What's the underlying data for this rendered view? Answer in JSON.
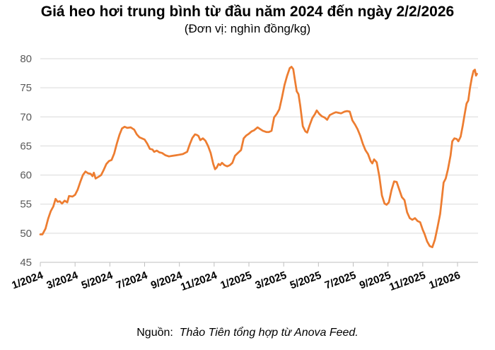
{
  "header": {
    "title": "Giá heo hơi trung bình từ đầu năm 2024 đến ngày 2/2/2026",
    "subtitle": "(Đơn vị: nghìn đồng/kg)"
  },
  "footer": {
    "source_label": "Nguồn:",
    "source_text": "Thảo Tiên tổng hợp từ Anova Feed."
  },
  "chart_data": {
    "type": "line",
    "title": "Giá heo hơi trung bình từ đầu năm 2024 đến ngày 2/2/2026",
    "unit": "nghìn đồng/kg",
    "xlabel": "",
    "ylabel": "",
    "ylim": [
      45,
      80
    ],
    "y_ticks": [
      80,
      75,
      70,
      65,
      60,
      55,
      50,
      45
    ],
    "x_ticks": [
      {
        "m": 0,
        "label": "1/2024"
      },
      {
        "m": 2,
        "label": "3/2024"
      },
      {
        "m": 4,
        "label": "5/2024"
      },
      {
        "m": 6,
        "label": "7/2024"
      },
      {
        "m": 8,
        "label": "9/2024"
      },
      {
        "m": 10,
        "label": "11/2024"
      },
      {
        "m": 12,
        "label": "1/2025"
      },
      {
        "m": 14,
        "label": "3/2025"
      },
      {
        "m": 16,
        "label": "5/2025"
      },
      {
        "m": 18,
        "label": "7/2025"
      },
      {
        "m": 20,
        "label": "9/2025"
      },
      {
        "m": 22,
        "label": "11/2025"
      },
      {
        "m": 24,
        "label": "1/2026"
      }
    ],
    "x_unit": "months since 1/2024",
    "grid": true,
    "legend_position": "none",
    "colors": {
      "line": "#ED7D31",
      "grid": "#D9D9D9",
      "axis": "#BFBFBF",
      "y_label": "#595959",
      "x_label": "#000000"
    },
    "series": [
      {
        "name": "Giá heo hơi trung bình (nghìn đồng/kg)",
        "points": [
          [
            0,
            49.8
          ],
          [
            0.12,
            49.8
          ],
          [
            0.3,
            50.8
          ],
          [
            0.45,
            52.5
          ],
          [
            0.6,
            53.8
          ],
          [
            0.75,
            54.6
          ],
          [
            0.88,
            55.9
          ],
          [
            1.0,
            55.4
          ],
          [
            1.12,
            55.5
          ],
          [
            1.25,
            55.1
          ],
          [
            1.4,
            55.6
          ],
          [
            1.55,
            55.3
          ],
          [
            1.65,
            56.4
          ],
          [
            1.85,
            56.3
          ],
          [
            2.0,
            56.6
          ],
          [
            2.15,
            57.5
          ],
          [
            2.3,
            58.8
          ],
          [
            2.45,
            60.0
          ],
          [
            2.6,
            60.6
          ],
          [
            2.75,
            60.3
          ],
          [
            2.9,
            60.2
          ],
          [
            3.0,
            59.8
          ],
          [
            3.08,
            60.4
          ],
          [
            3.18,
            59.4
          ],
          [
            3.35,
            59.7
          ],
          [
            3.5,
            60.0
          ],
          [
            3.65,
            60.9
          ],
          [
            3.8,
            61.9
          ],
          [
            3.95,
            62.4
          ],
          [
            4.1,
            62.6
          ],
          [
            4.25,
            63.7
          ],
          [
            4.4,
            65.4
          ],
          [
            4.55,
            66.9
          ],
          [
            4.7,
            68.0
          ],
          [
            4.85,
            68.3
          ],
          [
            5.0,
            68.1
          ],
          [
            5.2,
            68.2
          ],
          [
            5.4,
            67.8
          ],
          [
            5.55,
            67.0
          ],
          [
            5.7,
            66.5
          ],
          [
            5.85,
            66.3
          ],
          [
            6.0,
            66.1
          ],
          [
            6.15,
            65.4
          ],
          [
            6.3,
            64.5
          ],
          [
            6.45,
            64.4
          ],
          [
            6.55,
            64.0
          ],
          [
            6.7,
            64.2
          ],
          [
            6.85,
            63.9
          ],
          [
            7.0,
            63.8
          ],
          [
            7.2,
            63.4
          ],
          [
            7.4,
            63.2
          ],
          [
            7.6,
            63.3
          ],
          [
            7.8,
            63.4
          ],
          [
            8.0,
            63.5
          ],
          [
            8.2,
            63.6
          ],
          [
            8.45,
            64.0
          ],
          [
            8.6,
            65.3
          ],
          [
            8.75,
            66.4
          ],
          [
            8.9,
            67.0
          ],
          [
            9.0,
            66.9
          ],
          [
            9.1,
            66.7
          ],
          [
            9.2,
            66.0
          ],
          [
            9.35,
            66.3
          ],
          [
            9.5,
            65.9
          ],
          [
            9.65,
            65.0
          ],
          [
            9.8,
            63.8
          ],
          [
            9.95,
            61.9
          ],
          [
            10.05,
            61.0
          ],
          [
            10.15,
            61.3
          ],
          [
            10.25,
            61.9
          ],
          [
            10.35,
            61.7
          ],
          [
            10.45,
            62.1
          ],
          [
            10.6,
            61.7
          ],
          [
            10.75,
            61.5
          ],
          [
            10.9,
            61.7
          ],
          [
            11.05,
            62.1
          ],
          [
            11.2,
            63.3
          ],
          [
            11.4,
            63.9
          ],
          [
            11.55,
            64.3
          ],
          [
            11.7,
            66.3
          ],
          [
            11.85,
            66.8
          ],
          [
            12.0,
            67.1
          ],
          [
            12.15,
            67.5
          ],
          [
            12.3,
            67.7
          ],
          [
            12.5,
            68.2
          ],
          [
            12.65,
            67.9
          ],
          [
            12.8,
            67.6
          ],
          [
            13.0,
            67.4
          ],
          [
            13.15,
            67.4
          ],
          [
            13.3,
            67.6
          ],
          [
            13.45,
            69.9
          ],
          [
            13.6,
            70.5
          ],
          [
            13.75,
            71.3
          ],
          [
            13.9,
            73.3
          ],
          [
            14.05,
            75.5
          ],
          [
            14.2,
            77.1
          ],
          [
            14.35,
            78.4
          ],
          [
            14.45,
            78.6
          ],
          [
            14.55,
            78.2
          ],
          [
            14.65,
            76.3
          ],
          [
            14.75,
            74.4
          ],
          [
            14.85,
            73.9
          ],
          [
            14.95,
            72.0
          ],
          [
            15.1,
            68.4
          ],
          [
            15.25,
            67.5
          ],
          [
            15.35,
            67.3
          ],
          [
            15.5,
            68.6
          ],
          [
            15.65,
            69.8
          ],
          [
            15.8,
            70.5
          ],
          [
            15.9,
            71.1
          ],
          [
            16.05,
            70.5
          ],
          [
            16.2,
            70.1
          ],
          [
            16.35,
            69.9
          ],
          [
            16.5,
            69.5
          ],
          [
            16.65,
            70.3
          ],
          [
            16.85,
            70.6
          ],
          [
            17.0,
            70.8
          ],
          [
            17.15,
            70.7
          ],
          [
            17.3,
            70.6
          ],
          [
            17.5,
            70.9
          ],
          [
            17.65,
            71.0
          ],
          [
            17.8,
            70.9
          ],
          [
            17.95,
            69.4
          ],
          [
            18.1,
            68.7
          ],
          [
            18.25,
            67.9
          ],
          [
            18.4,
            66.8
          ],
          [
            18.55,
            65.4
          ],
          [
            18.7,
            64.3
          ],
          [
            18.85,
            63.6
          ],
          [
            19.0,
            62.4
          ],
          [
            19.1,
            62.0
          ],
          [
            19.2,
            62.7
          ],
          [
            19.35,
            62.2
          ],
          [
            19.5,
            59.8
          ],
          [
            19.65,
            56.5
          ],
          [
            19.8,
            55.1
          ],
          [
            19.92,
            54.9
          ],
          [
            20.05,
            55.3
          ],
          [
            20.2,
            57.4
          ],
          [
            20.35,
            58.9
          ],
          [
            20.5,
            58.8
          ],
          [
            20.65,
            57.5
          ],
          [
            20.8,
            56.2
          ],
          [
            20.95,
            55.7
          ],
          [
            21.1,
            53.6
          ],
          [
            21.25,
            52.6
          ],
          [
            21.4,
            52.3
          ],
          [
            21.55,
            52.6
          ],
          [
            21.7,
            52.1
          ],
          [
            21.85,
            51.9
          ],
          [
            22.0,
            50.6
          ],
          [
            22.1,
            49.9
          ],
          [
            22.25,
            48.6
          ],
          [
            22.4,
            47.8
          ],
          [
            22.55,
            47.6
          ],
          [
            22.7,
            48.9
          ],
          [
            22.85,
            51.0
          ],
          [
            23.0,
            53.3
          ],
          [
            23.1,
            56.0
          ],
          [
            23.2,
            58.7
          ],
          [
            23.32,
            59.4
          ],
          [
            23.45,
            61.0
          ],
          [
            23.6,
            63.4
          ],
          [
            23.7,
            65.8
          ],
          [
            23.82,
            66.3
          ],
          [
            23.95,
            66.2
          ],
          [
            24.05,
            65.8
          ],
          [
            24.18,
            66.6
          ],
          [
            24.3,
            68.5
          ],
          [
            24.42,
            70.6
          ],
          [
            24.52,
            72.3
          ],
          [
            24.62,
            72.8
          ],
          [
            24.72,
            75.0
          ],
          [
            24.82,
            76.7
          ],
          [
            24.92,
            77.9
          ],
          [
            25.0,
            78.1
          ],
          [
            25.06,
            77.1
          ],
          [
            25.12,
            77.4
          ]
        ]
      }
    ]
  }
}
